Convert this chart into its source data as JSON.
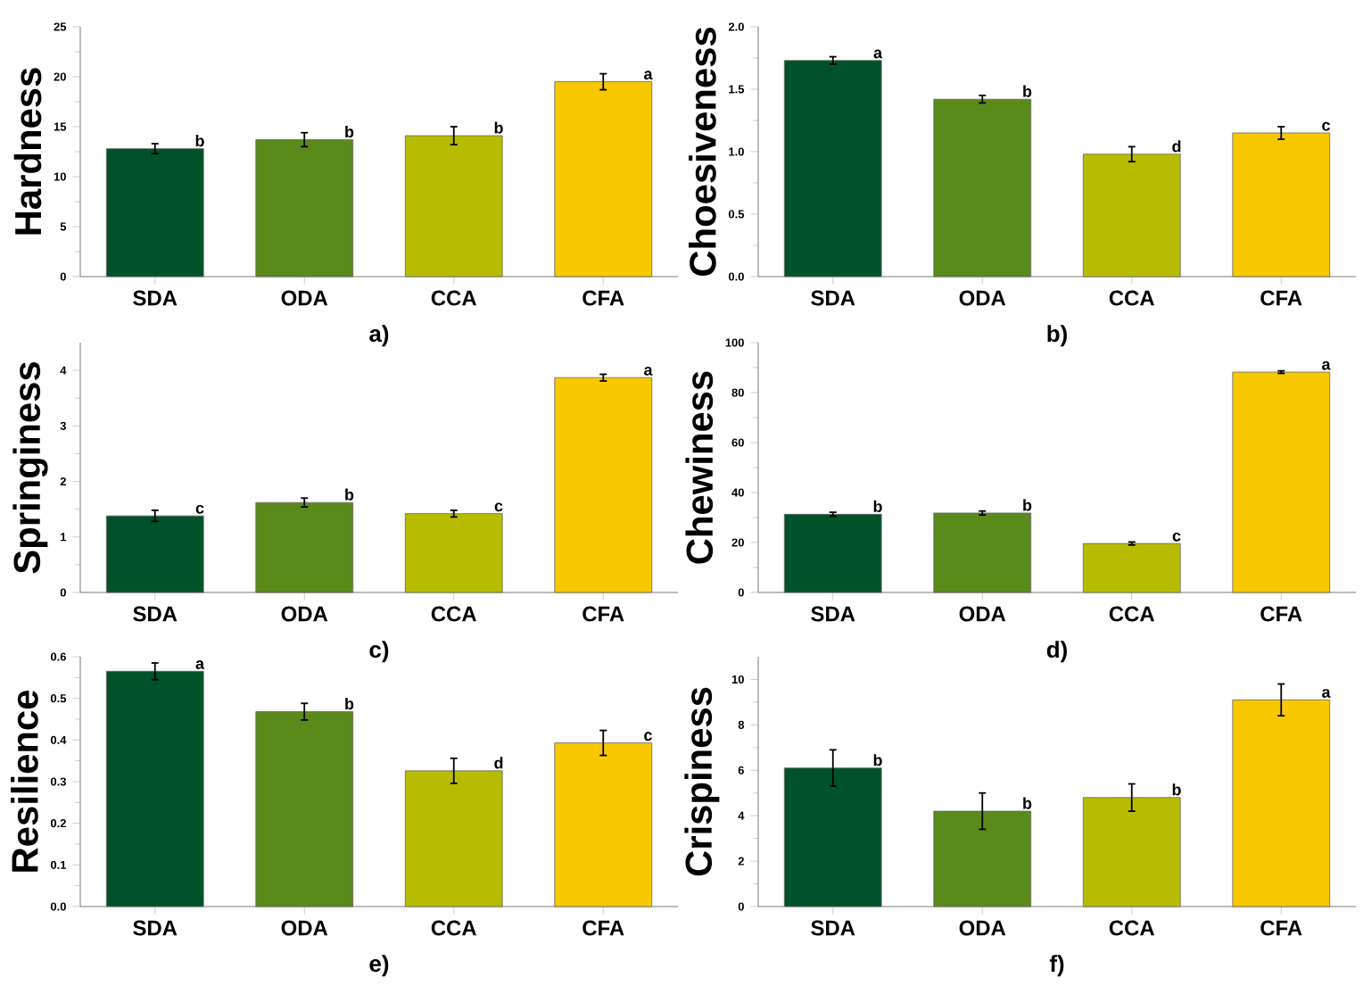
{
  "chart_data": [
    {
      "type": "bar",
      "xlabel": "a)",
      "ylabel": "Hardness",
      "categories": [
        "SDA",
        "ODA",
        "CCA",
        "CFA"
      ],
      "values": [
        12.8,
        13.7,
        14.1,
        19.5
      ],
      "errors": [
        0.5,
        0.7,
        0.9,
        0.8
      ],
      "colors": [
        "#00522a",
        "#5a8a1a",
        "#b8bc00",
        "#f8c800"
      ],
      "ylim": [
        0,
        25
      ],
      "yticks": [
        0,
        5,
        10,
        15,
        20,
        25
      ],
      "annotations": [
        {
          "text": "b",
          "x": "SDA",
          "y": 12.8
        },
        {
          "text": "b",
          "x": "ODA",
          "y": 13.7
        },
        {
          "text": "b",
          "x": "CCA",
          "y": 14.1
        },
        {
          "text": "a",
          "x": "CFA",
          "y": 19.5
        }
      ]
    },
    {
      "type": "bar",
      "xlabel": "b)",
      "ylabel": "Choesiveness",
      "categories": [
        "SDA",
        "ODA",
        "CCA",
        "CFA"
      ],
      "values": [
        1.73,
        1.42,
        0.98,
        1.15
      ],
      "errors": [
        0.03,
        0.03,
        0.06,
        0.05
      ],
      "colors": [
        "#00522a",
        "#5a8a1a",
        "#b8bc00",
        "#f8c800"
      ],
      "ylim": [
        0,
        2.0
      ],
      "yticks": [
        {
          "value": 0,
          "label": "0.0"
        },
        {
          "value": 0.5,
          "label": "0.5"
        },
        {
          "value": 1.0,
          "label": "1.0"
        },
        {
          "value": 1.5,
          "label": "1.5"
        },
        {
          "value": 2.0,
          "label": "2.0"
        }
      ],
      "annotations": [
        {
          "text": "a",
          "x": "SDA",
          "y": 1.73
        },
        {
          "text": "b",
          "x": "ODA",
          "y": 1.42
        },
        {
          "text": "d",
          "x": "CCA",
          "y": 0.98
        },
        {
          "text": "c",
          "x": "CFA",
          "y": 1.15
        }
      ]
    },
    {
      "type": "bar",
      "xlabel": "c)",
      "ylabel": "Springiness",
      "categories": [
        "SDA",
        "ODA",
        "CCA",
        "CFA"
      ],
      "values": [
        1.38,
        1.62,
        1.42,
        3.87
      ],
      "errors": [
        0.1,
        0.08,
        0.06,
        0.06
      ],
      "colors": [
        "#00522a",
        "#5a8a1a",
        "#b8bc00",
        "#f8c800"
      ],
      "ylim": [
        0,
        4.5
      ],
      "yticks": [
        0,
        1,
        2,
        3,
        4
      ],
      "annotations": [
        {
          "text": "c",
          "x": "SDA",
          "y": 1.38
        },
        {
          "text": "b",
          "x": "ODA",
          "y": 1.62
        },
        {
          "text": "c",
          "x": "CCA",
          "y": 1.42
        },
        {
          "text": "a",
          "x": "CFA",
          "y": 3.87
        }
      ]
    },
    {
      "type": "bar",
      "xlabel": "d)",
      "ylabel": "Chewiness",
      "categories": [
        "SDA",
        "ODA",
        "CCA",
        "CFA"
      ],
      "values": [
        31.3,
        31.8,
        19.6,
        88.2
      ],
      "errors": [
        0.8,
        0.8,
        0.6,
        0.5
      ],
      "colors": [
        "#00522a",
        "#5a8a1a",
        "#b8bc00",
        "#f8c800"
      ],
      "ylim": [
        0,
        100
      ],
      "yticks": [
        0,
        20,
        40,
        60,
        80,
        100
      ],
      "annotations": [
        {
          "text": "b",
          "x": "SDA",
          "y": 31.3
        },
        {
          "text": "b",
          "x": "ODA",
          "y": 31.8
        },
        {
          "text": "c",
          "x": "CCA",
          "y": 19.6
        },
        {
          "text": "a",
          "x": "CFA",
          "y": 88.2
        }
      ]
    },
    {
      "type": "bar",
      "xlabel": "e)",
      "ylabel": "Resilience",
      "categories": [
        "SDA",
        "ODA",
        "CCA",
        "CFA"
      ],
      "values": [
        0.565,
        0.468,
        0.326,
        0.393
      ],
      "errors": [
        0.02,
        0.02,
        0.03,
        0.03
      ],
      "colors": [
        "#00522a",
        "#5a8a1a",
        "#b8bc00",
        "#f8c800"
      ],
      "ylim": [
        0,
        0.6
      ],
      "yticks": [
        {
          "value": 0,
          "label": "0.0"
        },
        0.1,
        0.2,
        0.3,
        0.4,
        0.5,
        0.6
      ],
      "annotations": [
        {
          "text": "a",
          "x": "SDA",
          "y": 0.565
        },
        {
          "text": "b",
          "x": "ODA",
          "y": 0.468
        },
        {
          "text": "d",
          "x": "CCA",
          "y": 0.326
        },
        {
          "text": "c",
          "x": "CFA",
          "y": 0.393
        }
      ]
    },
    {
      "type": "bar",
      "xlabel": "f)",
      "ylabel": "Crispiness",
      "categories": [
        "SDA",
        "ODA",
        "CCA",
        "CFA"
      ],
      "values": [
        6.1,
        4.2,
        4.8,
        9.1
      ],
      "errors": [
        0.8,
        0.8,
        0.6,
        0.7
      ],
      "colors": [
        "#00522a",
        "#5a8a1a",
        "#b8bc00",
        "#f8c800"
      ],
      "ylim": [
        0,
        11
      ],
      "yticks": [
        0,
        2,
        4,
        6,
        8,
        10
      ],
      "annotations": [
        {
          "text": "b",
          "x": "SDA",
          "y": 6.1
        },
        {
          "text": "b",
          "x": "ODA",
          "y": 4.2
        },
        {
          "text": "b",
          "x": "CCA",
          "y": 4.8
        },
        {
          "text": "a",
          "x": "CFA",
          "y": 9.1
        }
      ]
    }
  ]
}
